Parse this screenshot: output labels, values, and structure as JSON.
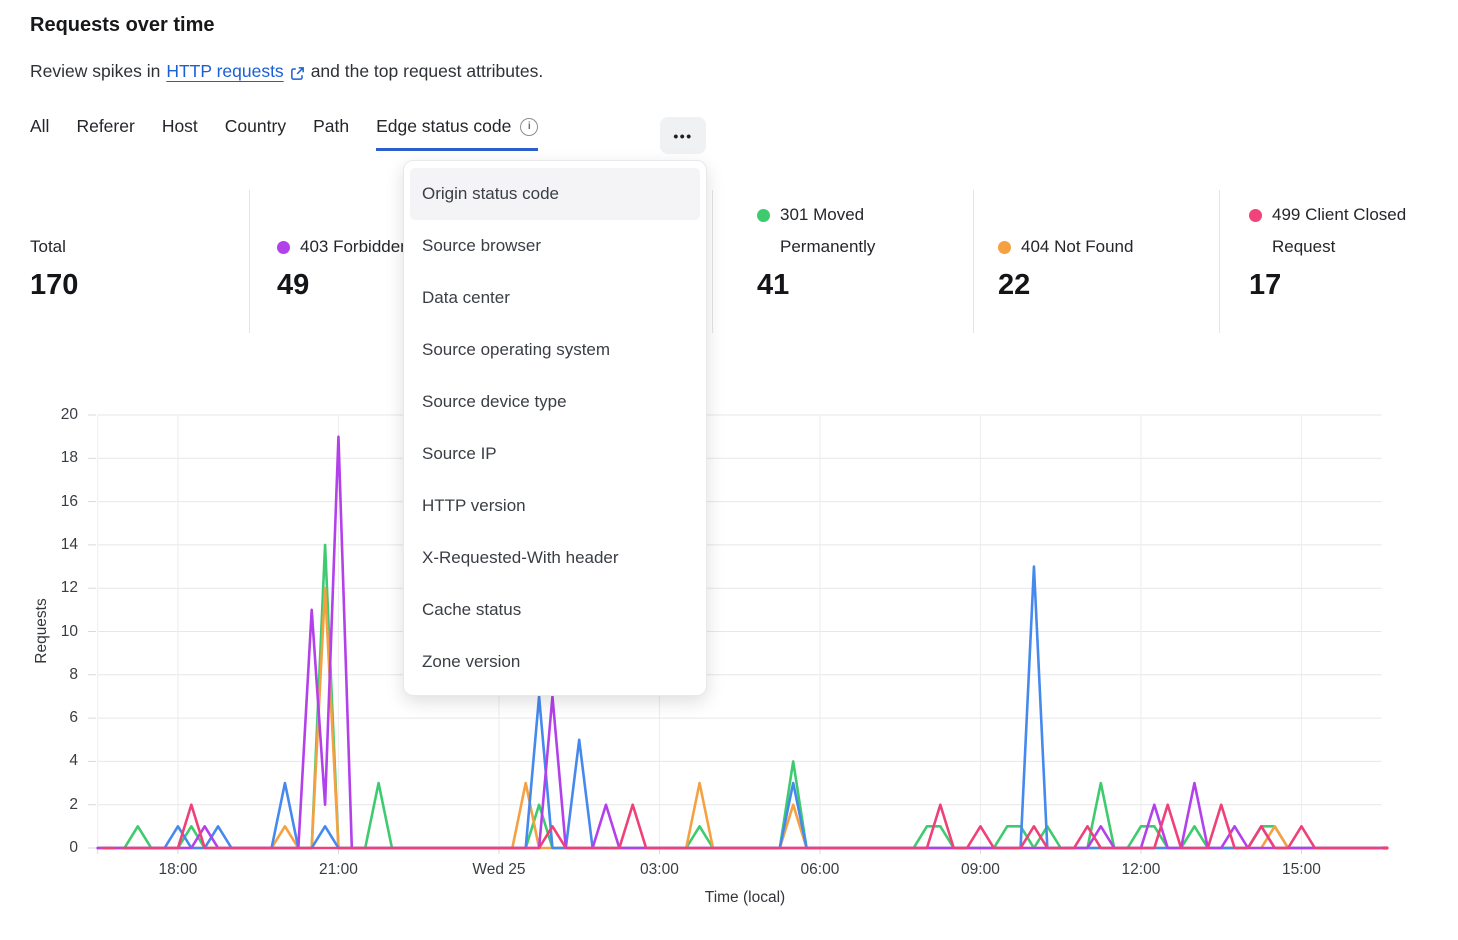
{
  "header": {
    "title": "Requests over time",
    "subtitle_prefix": "Review spikes in",
    "link_text": "HTTP requests",
    "subtitle_suffix": "and the top request attributes.",
    "link_color": "#1a5fd4"
  },
  "tabs": {
    "items": [
      "All",
      "Referer",
      "Host",
      "Country",
      "Path",
      "Edge status code"
    ],
    "active": "Edge status code",
    "active_underline_color": "#2b5fcc",
    "overflow_label": "•••"
  },
  "dropdown": {
    "items": [
      "Origin status code",
      "Source browser",
      "Data center",
      "Source operating system",
      "Source device type",
      "Source IP",
      "HTTP version",
      "X-Requested-With header",
      "Cache status",
      "Zone version"
    ],
    "highlighted": "Origin status code"
  },
  "stats": [
    {
      "label": "Total",
      "value": "170",
      "color": null
    },
    {
      "label": "403 Forbidden",
      "value": "49",
      "color": "#b341ea"
    },
    {
      "label": "301 Moved Permanently",
      "value": "41",
      "color": "#3ecb70"
    },
    {
      "label": "404 Not Found",
      "value": "22",
      "color": "#f5a142"
    },
    {
      "label": "499 Client Closed Request",
      "value": "17",
      "color": "#f0437c"
    }
  ],
  "chart_data": {
    "type": "line",
    "title": "",
    "xlabel": "Time (local)",
    "ylabel": "Requests",
    "ylim": [
      0,
      20
    ],
    "grid": true,
    "legend_position": "none",
    "x_axis": {
      "label": "Time (local)",
      "start": "16:30",
      "hours": 24,
      "step_hours": 0.25,
      "ticks": [
        {
          "label": "18:00",
          "hour": 1.5
        },
        {
          "label": "21:00",
          "hour": 4.5
        },
        {
          "label": "Wed 25",
          "hour": 7.5
        },
        {
          "label": "03:00",
          "hour": 10.5
        },
        {
          "label": "06:00",
          "hour": 13.5
        },
        {
          "label": "09:00",
          "hour": 16.5
        },
        {
          "label": "12:00",
          "hour": 19.5
        },
        {
          "label": "15:00",
          "hour": 22.5
        }
      ]
    },
    "y_axis": {
      "label": "Requests",
      "min": 0,
      "max": 20,
      "tick_step": 2,
      "ticks": [
        0,
        2,
        4,
        6,
        8,
        10,
        12,
        14,
        16,
        18,
        20
      ]
    },
    "series": [
      {
        "name": "301 Moved Permanently",
        "color": "#3ecb70",
        "points": {
          "3": 1,
          "7": 1,
          "17": 14,
          "21": 3,
          "33": 2,
          "45": 1,
          "52": 4,
          "62": 1,
          "63": 1,
          "68": 1,
          "69": 1,
          "71": 1,
          "75": 3,
          "78": 1,
          "79": 1,
          "82": 1,
          "87": 1,
          "88": 1
        }
      },
      {
        "name": "404 Not Found",
        "color": "#f5a142",
        "points": {
          "14": 1,
          "17": 12,
          "32": 3,
          "45": 3,
          "52": 2,
          "88": 1
        }
      },
      {
        "name": "",
        "color": "#4689ee",
        "points": {
          "6": 1,
          "9": 1,
          "14": 3,
          "17": 1,
          "33": 7,
          "36": 5,
          "52": 3,
          "70": 13,
          "87": 1
        }
      },
      {
        "name": "403 Forbidden",
        "color": "#b341ea",
        "points": {
          "8": 1,
          "16": 11,
          "17": 2,
          "18": 19,
          "34": 7,
          "38": 2,
          "75": 1,
          "79": 2,
          "82": 3,
          "85": 1
        }
      },
      {
        "name": "499 Client Closed Request",
        "color": "#ef4078",
        "broken_ends": true,
        "points": {
          "7": 2,
          "34": 1,
          "40": 2,
          "63": 2,
          "66": 1,
          "70": 1,
          "74": 1,
          "80": 2,
          "84": 2,
          "87": 1,
          "90": 1
        }
      }
    ]
  }
}
